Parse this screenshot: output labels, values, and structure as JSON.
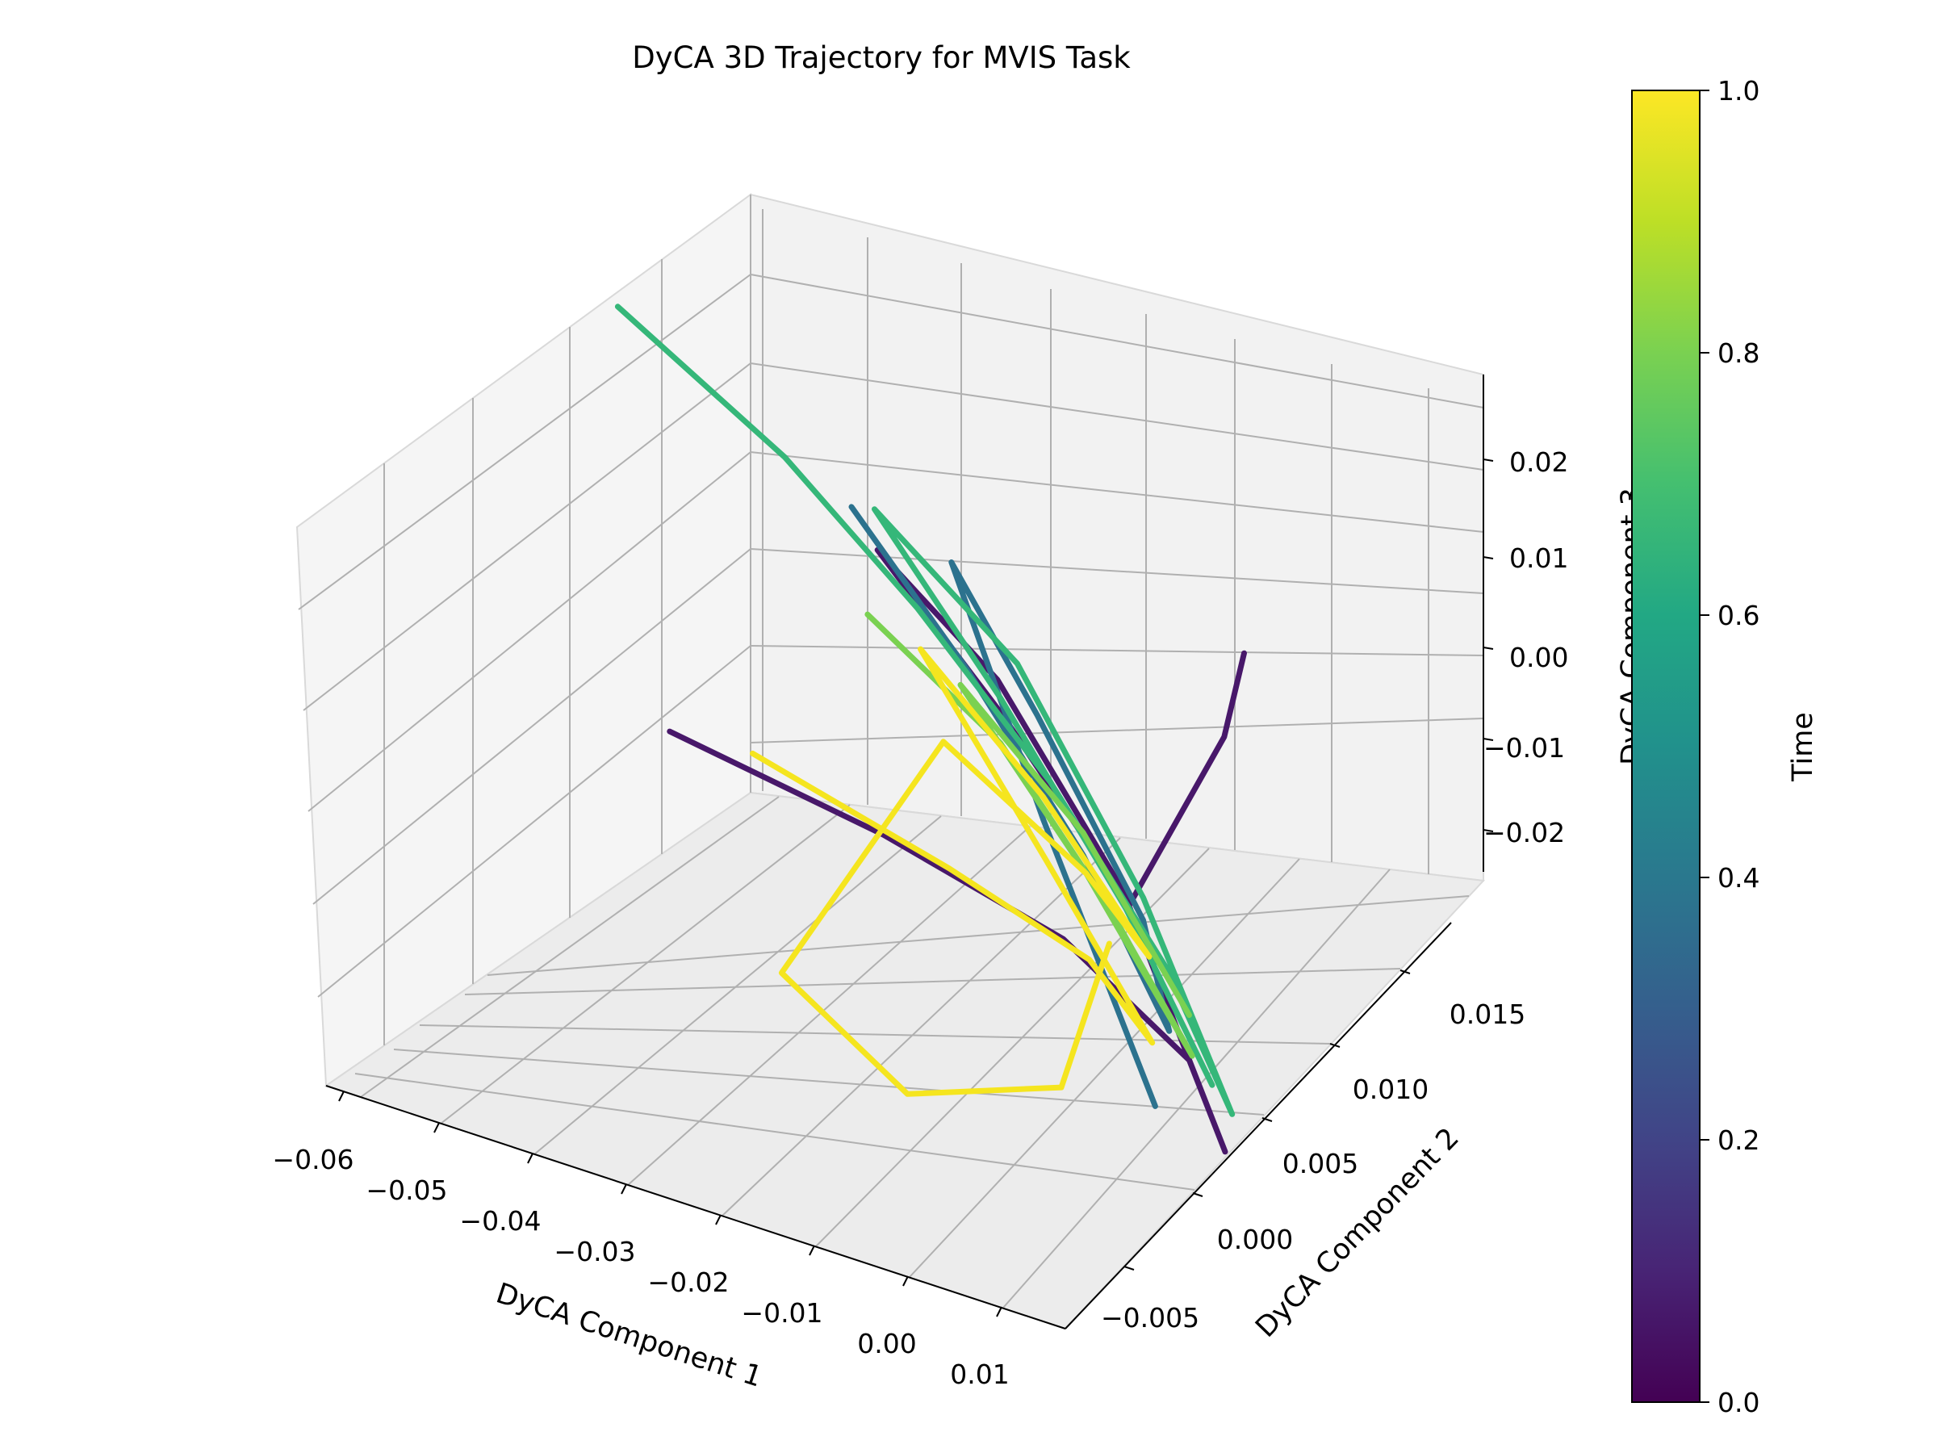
{
  "chart_data": {
    "type": "line",
    "title": "DyCA 3D Trajectory for MVIS Task",
    "xlabel": "DyCA Component 1",
    "ylabel": "DyCA Component 2",
    "zlabel": "DyCA Component 3",
    "xticks": [
      "−0.06",
      "−0.05",
      "−0.04",
      "−0.03",
      "−0.02",
      "−0.01",
      "0.00",
      "0.01"
    ],
    "yticks": [
      "−0.005",
      "0.000",
      "0.005",
      "0.010",
      "0.015"
    ],
    "zticks": [
      "−0.02",
      "−0.01",
      "0.00",
      "0.01",
      "0.02"
    ],
    "xlim": [
      -0.062,
      0.012
    ],
    "ylim": [
      -0.008,
      0.017
    ],
    "zlim": [
      -0.027,
      0.026
    ],
    "grid": true,
    "colormap": "viridis",
    "colorbar": {
      "label": "Time",
      "ticks": [
        "0.0",
        "0.2",
        "0.4",
        "0.6",
        "0.8",
        "1.0"
      ],
      "range": [
        0,
        1
      ]
    },
    "series": [
      {
        "time": 0.05,
        "color": "#48186a",
        "points": [
          [
            -0.048,
            0.004,
            -0.004
          ],
          [
            -0.03,
            0.006,
            -0.01
          ],
          [
            -0.012,
            0.006,
            -0.014
          ],
          [
            0.004,
            0.004,
            -0.018
          ],
          [
            0.011,
            0.002,
            -0.022
          ],
          [
            -0.006,
            0.006,
            -0.008
          ],
          [
            -0.022,
            0.008,
            0.004
          ],
          [
            -0.034,
            0.008,
            0.012
          ],
          [
            -0.018,
            0.006,
            0.004
          ],
          [
            -0.002,
            0.004,
            -0.006
          ],
          [
            -0.001,
            0.009,
            0.004
          ],
          [
            0.001,
            0.009,
            0.012
          ]
        ]
      },
      {
        "time": 0.45,
        "color": "#2c728e",
        "points": [
          [
            -0.04,
            0.01,
            0.012
          ],
          [
            -0.025,
            0.008,
            0.004
          ],
          [
            -0.01,
            0.006,
            -0.006
          ],
          [
            0.002,
            0.004,
            -0.016
          ],
          [
            -0.004,
            0.006,
            -0.01
          ],
          [
            -0.018,
            0.008,
            0.002
          ],
          [
            -0.03,
            0.01,
            0.01
          ],
          [
            -0.014,
            0.006,
            -0.004
          ],
          [
            0.004,
            0.002,
            -0.02
          ]
        ]
      },
      {
        "time": 0.65,
        "color": "#35b779",
        "points": [
          [
            -0.06,
            0.008,
            0.026
          ],
          [
            -0.045,
            0.009,
            0.016
          ],
          [
            -0.03,
            0.008,
            0.008
          ],
          [
            -0.015,
            0.007,
            -0.002
          ],
          [
            0.0,
            0.005,
            -0.012
          ],
          [
            0.01,
            0.003,
            -0.02
          ],
          [
            -0.004,
            0.006,
            -0.008
          ],
          [
            -0.02,
            0.008,
            0.006
          ],
          [
            -0.036,
            0.009,
            0.014
          ],
          [
            -0.02,
            0.007,
            0.004
          ],
          [
            -0.004,
            0.005,
            -0.008
          ],
          [
            0.008,
            0.003,
            -0.018
          ]
        ]
      },
      {
        "time": 0.8,
        "color": "#7ad151",
        "points": [
          [
            -0.035,
            0.008,
            0.006
          ],
          [
            -0.02,
            0.007,
            0.0
          ],
          [
            -0.006,
            0.005,
            -0.008
          ],
          [
            0.006,
            0.003,
            -0.016
          ],
          [
            -0.008,
            0.005,
            -0.006
          ],
          [
            -0.024,
            0.007,
            0.004
          ],
          [
            -0.01,
            0.006,
            -0.004
          ],
          [
            0.004,
            0.004,
            -0.014
          ]
        ]
      },
      {
        "time": 0.97,
        "color": "#f5e51f",
        "points": [
          [
            -0.038,
            0.003,
            -0.002
          ],
          [
            -0.02,
            0.004,
            -0.008
          ],
          [
            -0.006,
            0.004,
            -0.012
          ],
          [
            0.002,
            0.003,
            -0.016
          ],
          [
            -0.012,
            0.005,
            -0.006
          ],
          [
            -0.028,
            0.007,
            0.006
          ],
          [
            -0.014,
            0.006,
            -0.002
          ],
          [
            0.0,
            0.004,
            -0.01
          ],
          [
            -0.008,
            0.005,
            -0.006
          ],
          [
            -0.024,
            0.006,
            0.0
          ],
          [
            -0.03,
            0.0,
            -0.016
          ],
          [
            -0.014,
            -0.002,
            -0.02
          ],
          [
            -0.002,
            0.0,
            -0.018
          ],
          [
            -0.004,
            0.004,
            -0.01
          ]
        ]
      }
    ]
  }
}
